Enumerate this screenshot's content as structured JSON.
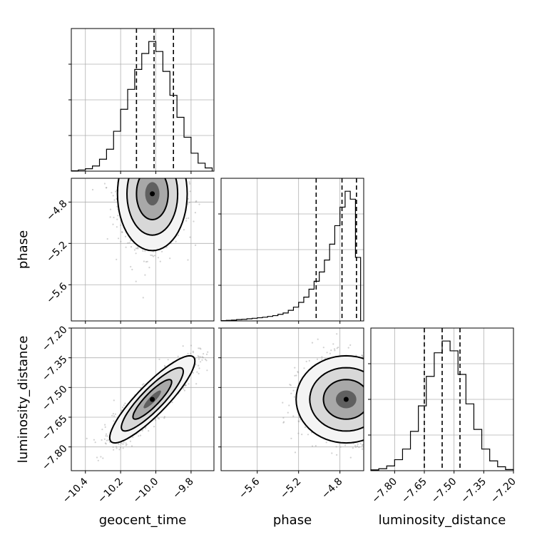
{
  "chart_data": {
    "type": "corner",
    "parameters": [
      "geocent_time",
      "phase",
      "luminosity_distance"
    ],
    "ranges": {
      "geocent_time": [
        -10.48,
        -9.67
      ],
      "phase": [
        -5.95,
        -4.57
      ],
      "luminosity_distance": [
        -7.92,
        -7.2
      ]
    },
    "ticks": {
      "geocent_time": [
        -10.4,
        -10.2,
        -10.0,
        -9.8
      ],
      "phase": [
        -5.6,
        -5.2,
        -4.8
      ],
      "luminosity_distance": [
        -7.8,
        -7.65,
        -7.5,
        -7.35,
        -7.2
      ]
    },
    "tick_labels": {
      "geocent_time": [
        "−10.4",
        "−10.2",
        "−10.0",
        "−9.8"
      ],
      "phase": [
        "−5.6",
        "−5.2",
        "−4.8"
      ],
      "luminosity_distance": [
        "−7.80",
        "−7.65",
        "−7.50",
        "−7.35",
        "−7.20"
      ]
    },
    "marginals": {
      "geocent_time": {
        "quantiles": [
          -10.11,
          -10.01,
          -9.9
        ],
        "bins": [
          -10.48,
          -10.44,
          -10.4,
          -10.36,
          -10.32,
          -10.28,
          -10.24,
          -10.2,
          -10.16,
          -10.12,
          -10.08,
          -10.04,
          -10.0,
          -9.96,
          -9.92,
          -9.88,
          -9.84,
          -9.8,
          -9.76,
          -9.72,
          -9.68
        ],
        "counts": [
          1,
          3,
          6,
          13,
          30,
          55,
          100,
          155,
          205,
          255,
          295,
          325,
          300,
          250,
          190,
          135,
          85,
          45,
          20,
          8
        ]
      },
      "phase": {
        "quantiles": [
          -5.03,
          -4.78,
          -4.64
        ],
        "bins": [
          -5.95,
          -5.9,
          -5.85,
          -5.8,
          -5.75,
          -5.7,
          -5.65,
          -5.6,
          -5.55,
          -5.5,
          -5.45,
          -5.4,
          -5.35,
          -5.3,
          -5.25,
          -5.2,
          -5.15,
          -5.1,
          -5.05,
          -5.0,
          -4.95,
          -4.9,
          -4.85,
          -4.8,
          -4.75,
          -4.7,
          -4.65,
          -4.6
        ],
        "counts": [
          1,
          2,
          3,
          5,
          6,
          8,
          10,
          12,
          14,
          17,
          20,
          25,
          30,
          40,
          52,
          70,
          90,
          120,
          150,
          185,
          230,
          290,
          360,
          430,
          490,
          460,
          240
        ]
      },
      "luminosity_distance": {
        "quantiles": [
          -7.65,
          -7.56,
          -7.47
        ],
        "bins": [
          -7.92,
          -7.88,
          -7.84,
          -7.8,
          -7.76,
          -7.72,
          -7.68,
          -7.64,
          -7.6,
          -7.56,
          -7.52,
          -7.48,
          -7.44,
          -7.4,
          -7.36,
          -7.32,
          -7.28,
          -7.24,
          -7.2
        ],
        "counts": [
          2,
          5,
          12,
          28,
          55,
          100,
          165,
          240,
          300,
          330,
          305,
          245,
          170,
          105,
          55,
          25,
          10,
          3
        ]
      }
    },
    "pairs": [
      {
        "x": "geocent_time",
        "y": "phase",
        "center": [
          -10.02,
          -4.72
        ],
        "spread": [
          0.09,
          0.25
        ],
        "correlation": 0.0
      },
      {
        "x": "geocent_time",
        "y": "luminosity_distance",
        "center": [
          -10.02,
          -7.56
        ],
        "spread": [
          0.11,
          0.1
        ],
        "correlation": 0.88
      },
      {
        "x": "phase",
        "y": "luminosity_distance",
        "center": [
          -4.74,
          -7.56
        ],
        "spread": [
          0.22,
          0.1
        ],
        "correlation": 0.0
      }
    ],
    "grid": true
  }
}
